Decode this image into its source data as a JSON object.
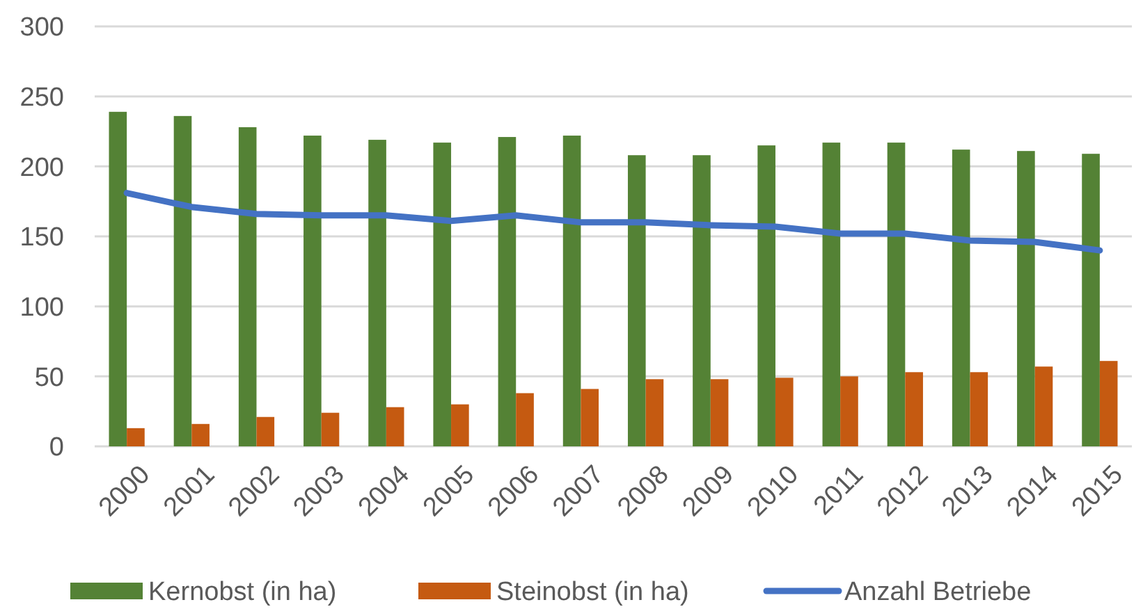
{
  "chart_data": {
    "type": "bar",
    "categories": [
      "2000",
      "2001",
      "2002",
      "2003",
      "2004",
      "2005",
      "2006",
      "2007",
      "2008",
      "2009",
      "2010",
      "2011",
      "2012",
      "2013",
      "2014",
      "2015"
    ],
    "series": [
      {
        "name": "Kernobst (in ha)",
        "color": "#548235",
        "values": [
          239,
          236,
          228,
          222,
          219,
          217,
          221,
          222,
          208,
          208,
          215,
          217,
          217,
          212,
          211,
          209
        ]
      },
      {
        "name": "Steinobst (in ha)",
        "color": "#c55a11",
        "values": [
          13,
          16,
          21,
          24,
          28,
          30,
          38,
          41,
          48,
          48,
          49,
          50,
          53,
          53,
          57,
          61
        ]
      },
      {
        "name": "Anzahl Betriebe",
        "type": "line",
        "color": "#4472c4",
        "values": [
          181,
          171,
          166,
          165,
          165,
          161,
          165,
          160,
          160,
          158,
          157,
          152,
          152,
          147,
          146,
          140
        ]
      }
    ],
    "ylim": [
      0,
      300
    ],
    "yticks": [
      0,
      50,
      100,
      150,
      200,
      250,
      300
    ],
    "grid": "y",
    "legend": "bottom",
    "marker": "none",
    "line_style": "solid"
  }
}
